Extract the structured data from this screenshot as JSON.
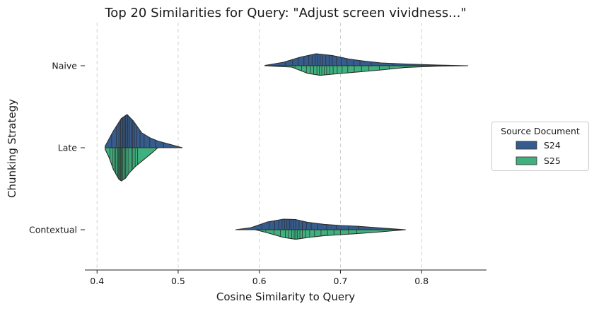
{
  "chart_data": {
    "type": "violin",
    "title": "Top 20 Similarities for Query: \"Adjust screen vividness...\"",
    "xlabel": "Cosine Similarity to Query",
    "ylabel": "Chunking Strategy",
    "xlim": [
      0.385,
      0.88
    ],
    "xticks": [
      0.4,
      0.5,
      0.6,
      0.7,
      0.8
    ],
    "xtick_labels": [
      "0.4",
      "0.5",
      "0.6",
      "0.7",
      "0.8"
    ],
    "grid": "vertical dashed",
    "split": true,
    "inner": "stick",
    "categories": [
      "Naive",
      "Late",
      "Contextual"
    ],
    "legend": {
      "title": "Source Document",
      "placement": "center-right outside",
      "entries": [
        "S24",
        "S25"
      ]
    },
    "series": [
      {
        "name": "S24",
        "color": "#365c8d",
        "side": "upper",
        "values": {
          "Naive": [
            0.632,
            0.641,
            0.648,
            0.655,
            0.661,
            0.665,
            0.669,
            0.672,
            0.675,
            0.678,
            0.682,
            0.686,
            0.69,
            0.695,
            0.701,
            0.708,
            0.716,
            0.724,
            0.738,
            0.765
          ],
          "Late": [
            0.418,
            0.424,
            0.427,
            0.429,
            0.431,
            0.432,
            0.434,
            0.435,
            0.437,
            0.438,
            0.44,
            0.442,
            0.444,
            0.446,
            0.449,
            0.453,
            0.458,
            0.465,
            0.472,
            0.482
          ],
          "Contextual": [
            0.603,
            0.612,
            0.619,
            0.624,
            0.628,
            0.631,
            0.634,
            0.637,
            0.639,
            0.642,
            0.645,
            0.649,
            0.653,
            0.658,
            0.664,
            0.672,
            0.683,
            0.695,
            0.71,
            0.722
          ]
        }
      },
      {
        "name": "S25",
        "color": "#3fb07e",
        "side": "lower",
        "values": {
          "Naive": [
            0.644,
            0.652,
            0.658,
            0.663,
            0.667,
            0.671,
            0.674,
            0.677,
            0.68,
            0.683,
            0.687,
            0.691,
            0.696,
            0.702,
            0.709,
            0.717,
            0.726,
            0.735,
            0.748,
            0.76
          ],
          "Late": [
            0.416,
            0.419,
            0.421,
            0.423,
            0.425,
            0.426,
            0.427,
            0.428,
            0.429,
            0.43,
            0.431,
            0.432,
            0.434,
            0.435,
            0.437,
            0.439,
            0.442,
            0.444,
            0.447,
            0.45
          ],
          "Contextual": [
            0.608,
            0.618,
            0.626,
            0.632,
            0.636,
            0.64,
            0.643,
            0.645,
            0.647,
            0.65,
            0.653,
            0.657,
            0.662,
            0.668,
            0.676,
            0.684,
            0.692,
            0.7,
            0.71,
            0.72
          ]
        }
      }
    ],
    "kde_curves": {
      "S24": {
        "Naive": [
          [
            0.607,
            0.02
          ],
          [
            0.63,
            0.25
          ],
          [
            0.65,
            0.6
          ],
          [
            0.67,
            0.85
          ],
          [
            0.69,
            0.72
          ],
          [
            0.71,
            0.48
          ],
          [
            0.73,
            0.32
          ],
          [
            0.75,
            0.2
          ],
          [
            0.78,
            0.12
          ],
          [
            0.82,
            0.05
          ],
          [
            0.857,
            0.0
          ]
        ],
        "Late": [
          [
            0.41,
            0.05
          ],
          [
            0.42,
            0.5
          ],
          [
            0.43,
            0.88
          ],
          [
            0.437,
            1.0
          ],
          [
            0.445,
            0.8
          ],
          [
            0.455,
            0.45
          ],
          [
            0.465,
            0.3
          ],
          [
            0.475,
            0.2
          ],
          [
            0.49,
            0.1
          ],
          [
            0.505,
            0.0
          ]
        ],
        "Contextual": [
          [
            0.571,
            0.0
          ],
          [
            0.59,
            0.15
          ],
          [
            0.61,
            0.55
          ],
          [
            0.63,
            0.75
          ],
          [
            0.645,
            0.72
          ],
          [
            0.66,
            0.52
          ],
          [
            0.68,
            0.38
          ],
          [
            0.7,
            0.3
          ],
          [
            0.72,
            0.25
          ],
          [
            0.75,
            0.12
          ],
          [
            0.78,
            0.0
          ]
        ]
      },
      "S25": {
        "Naive": [
          [
            0.607,
            0.0
          ],
          [
            0.64,
            0.1
          ],
          [
            0.66,
            0.55
          ],
          [
            0.675,
            0.68
          ],
          [
            0.69,
            0.6
          ],
          [
            0.71,
            0.5
          ],
          [
            0.73,
            0.4
          ],
          [
            0.75,
            0.3
          ],
          [
            0.78,
            0.12
          ],
          [
            0.82,
            0.03
          ],
          [
            0.857,
            0.0
          ]
        ],
        "Late": [
          [
            0.41,
            0.05
          ],
          [
            0.415,
            0.3
          ],
          [
            0.42,
            0.65
          ],
          [
            0.427,
            0.95
          ],
          [
            0.43,
            1.0
          ],
          [
            0.435,
            0.92
          ],
          [
            0.44,
            0.75
          ],
          [
            0.448,
            0.55
          ],
          [
            0.458,
            0.35
          ],
          [
            0.468,
            0.15
          ],
          [
            0.475,
            0.0
          ]
        ],
        "Contextual": [
          [
            0.595,
            0.0
          ],
          [
            0.61,
            0.22
          ],
          [
            0.63,
            0.55
          ],
          [
            0.645,
            0.68
          ],
          [
            0.66,
            0.55
          ],
          [
            0.68,
            0.42
          ],
          [
            0.7,
            0.35
          ],
          [
            0.72,
            0.28
          ],
          [
            0.75,
            0.15
          ],
          [
            0.78,
            0.0
          ]
        ]
      }
    }
  }
}
